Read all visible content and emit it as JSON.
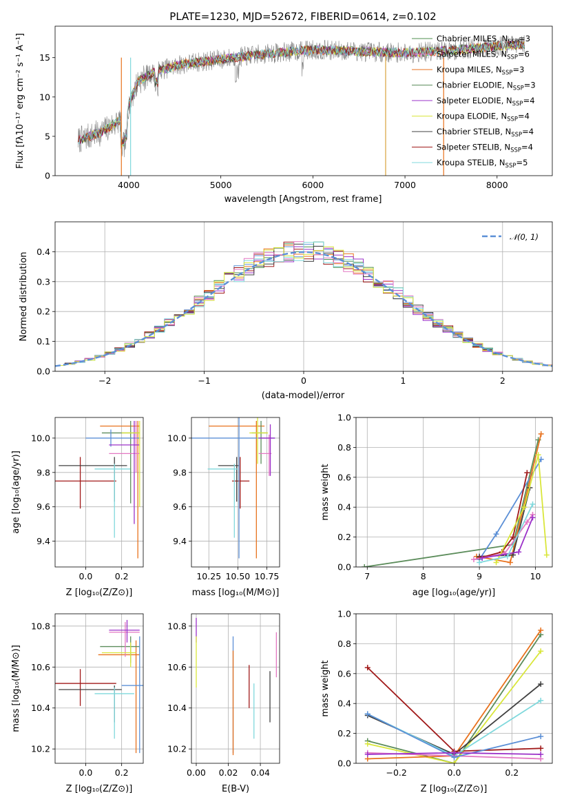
{
  "figure_title": "PLATE=1230, MJD=52672, FIBERID=0614, z=0.102",
  "chart_data": [
    {
      "id": "spectrum",
      "type": "line",
      "xlabel": "wavelength [Angstrom, rest frame]",
      "ylabel": "Flux [fλ10⁻¹⁷ erg cm⁻² s⁻¹ A⁻¹]",
      "xlim": [
        3200,
        8600
      ],
      "ylim": [
        0,
        19
      ],
      "xticks": [
        "4000",
        "5000",
        "6000",
        "7000",
        "8000"
      ],
      "yticks": [
        "0",
        "5",
        "10",
        "15"
      ],
      "grid": false,
      "legend": "right",
      "data_color": "#808080",
      "continuum_x": [
        3450,
        3700,
        3900,
        4000,
        4100,
        4300,
        4600,
        5000,
        5500,
        6000,
        6500,
        7000,
        7500,
        8000,
        8300
      ],
      "continuum_y": [
        4.5,
        5.5,
        7.0,
        9.0,
        12.0,
        13.3,
        14.2,
        14.8,
        15.5,
        16.0,
        15.8,
        15.6,
        15.9,
        16.5,
        16.6
      ],
      "series": [
        {
          "name": "Chabrier MILES, N_SSP=3",
          "color": "#4f8f4f"
        },
        {
          "name": "Salpeter MILES, N_SSP=6",
          "color": "#e377c2"
        },
        {
          "name": "Kroupa MILES, N_SSP=3",
          "color": "#e8711c"
        },
        {
          "name": "Chabrier ELODIE, N_SSP=3",
          "color": "#5b8c5a"
        },
        {
          "name": "Salpeter ELODIE, N_SSP=4",
          "color": "#9b30c8"
        },
        {
          "name": "Kroupa ELODIE, N_SSP=4",
          "color": "#d9e63a"
        },
        {
          "name": "Chabrier STELIB, N_SSP=4",
          "color": "#404040"
        },
        {
          "name": "Salpeter STELIB, N_SSP=4",
          "color": "#a01818"
        },
        {
          "name": "Kroupa STELIB, N_SSP=5",
          "color": "#7fd8dc"
        }
      ],
      "legend_labels": [
        {
          "pre": "Chabrier MILES, N",
          "sub": "SSP",
          "post": "=3"
        },
        {
          "pre": "Salpeter MILES, N",
          "sub": "SSP",
          "post": "=6"
        },
        {
          "pre": "Kroupa MILES, N",
          "sub": "SSP",
          "post": "=3"
        },
        {
          "pre": "Chabrier ELODIE, N",
          "sub": "SSP",
          "post": "=3"
        },
        {
          "pre": "Salpeter ELODIE, N",
          "sub": "SSP",
          "post": "=4"
        },
        {
          "pre": "Kroupa ELODIE, N",
          "sub": "SSP",
          "post": "=4"
        },
        {
          "pre": "Chabrier STELIB, N",
          "sub": "SSP",
          "post": "=4"
        },
        {
          "pre": "Salpeter STELIB, N",
          "sub": "SSP",
          "post": "=4"
        },
        {
          "pre": "Kroupa STELIB, N",
          "sub": "SSP",
          "post": "=5"
        }
      ]
    },
    {
      "id": "residuals",
      "type": "line",
      "xlabel": "(data-model)/error",
      "ylabel": "Normed distribution",
      "xlim": [
        -2.5,
        2.5
      ],
      "ylim": [
        0,
        0.5
      ],
      "xticks": [
        "−2",
        "−1",
        "0",
        "1",
        "2"
      ],
      "yticks": [
        "0.0",
        "0.1",
        "0.2",
        "0.3",
        "0.4"
      ],
      "grid": true,
      "legend": "top-right",
      "reference": {
        "name": "𝒩(0, 1)",
        "color": "#5b8fd6",
        "mu": 0,
        "sigma": 1
      },
      "hist_colors": [
        "#5b8fd6",
        "#e8711c",
        "#4f8f4f",
        "#a01818",
        "#9b30c8",
        "#404040",
        "#e377c2",
        "#7fd8dc",
        "#d9e63a"
      ]
    },
    {
      "id": "age_vs_Z",
      "type": "scatter",
      "xlabel": "Z [log₁₀(Z/Z⊙)]",
      "ylabel": "age  [log₁₀(age/yr)]",
      "xlim": [
        -0.17,
        0.32
      ],
      "ylim": [
        9.25,
        10.12
      ],
      "xticks": [
        "0.0",
        "0.2"
      ],
      "yticks": [
        "9.4",
        "9.6",
        "9.8",
        "10.0"
      ],
      "grid": true,
      "points": [
        {
          "x": -0.03,
          "y": 9.75,
          "xlo": -0.3,
          "xhi": 0.17,
          "ylo": 9.59,
          "yhi": 9.89,
          "color": "#a01818"
        },
        {
          "x": 0.16,
          "y": 9.84,
          "xlo": -0.15,
          "xhi": 0.23,
          "ylo": 9.63,
          "yhi": 9.89,
          "color": "#404040"
        },
        {
          "x": 0.16,
          "y": 9.82,
          "xlo": 0.05,
          "xhi": 0.25,
          "ylo": 9.42,
          "yhi": 9.85,
          "color": "#7fd8dc"
        },
        {
          "x": 0.29,
          "y": 10.07,
          "xlo": 0.08,
          "xhi": 0.3,
          "ylo": 9.3,
          "yhi": 10.1,
          "color": "#e8711c"
        },
        {
          "x": 0.25,
          "y": 10.03,
          "xlo": 0.09,
          "xhi": 0.3,
          "ylo": 9.62,
          "yhi": 10.1,
          "color": "#5b8c5a"
        },
        {
          "x": 0.14,
          "y": 10.0,
          "xlo": 0.0,
          "xhi": 0.3,
          "ylo": 9.95,
          "yhi": 10.05,
          "color": "#5b8fd6"
        },
        {
          "x": 0.28,
          "y": 9.91,
          "xlo": 0.13,
          "xhi": 0.3,
          "ylo": 9.8,
          "yhi": 10.1,
          "color": "#e377c2"
        },
        {
          "x": 0.27,
          "y": 9.96,
          "xlo": 0.13,
          "xhi": 0.3,
          "ylo": 9.5,
          "yhi": 10.1,
          "color": "#9b30c8"
        },
        {
          "x": 0.3,
          "y": 10.03,
          "xlo": 0.2,
          "xhi": 0.3,
          "ylo": 9.6,
          "yhi": 10.1,
          "color": "#d9e63a"
        }
      ]
    },
    {
      "id": "age_vs_mass",
      "type": "scatter",
      "xlabel": "mass [log₁₀(M/M⊙)]",
      "ylabel": "",
      "xlim": [
        10.1,
        10.86
      ],
      "ylim": [
        9.25,
        10.12
      ],
      "xticks": [
        "10.25",
        "10.50",
        "10.75"
      ],
      "yticks": [
        "9.4",
        "9.6",
        "9.8",
        "10.0"
      ],
      "grid": true,
      "points": [
        {
          "x": 10.52,
          "y": 9.75,
          "xlo": 10.45,
          "xhi": 10.6,
          "ylo": 9.59,
          "yhi": 9.89,
          "color": "#a01818"
        },
        {
          "x": 10.49,
          "y": 9.84,
          "xlo": 10.33,
          "xhi": 10.51,
          "ylo": 9.63,
          "yhi": 9.89,
          "color": "#404040"
        },
        {
          "x": 10.47,
          "y": 9.82,
          "xlo": 10.24,
          "xhi": 10.5,
          "ylo": 9.42,
          "yhi": 9.85,
          "color": "#7fd8dc"
        },
        {
          "x": 10.66,
          "y": 10.07,
          "xlo": 10.25,
          "xhi": 10.73,
          "ylo": 9.3,
          "yhi": 10.1,
          "color": "#e8711c"
        },
        {
          "x": 10.7,
          "y": 10.03,
          "xlo": 10.62,
          "xhi": 10.75,
          "ylo": 9.85,
          "yhi": 10.1,
          "color": "#5b8c5a"
        },
        {
          "x": 10.51,
          "y": 10.0,
          "xlo": 10.09,
          "xhi": 10.82,
          "ylo": 9.3,
          "yhi": 10.12,
          "color": "#5b8fd6"
        },
        {
          "x": 10.77,
          "y": 9.91,
          "xlo": 10.68,
          "xhi": 10.79,
          "ylo": 9.78,
          "yhi": 10.02,
          "color": "#e377c2"
        },
        {
          "x": 10.78,
          "y": 10.0,
          "xlo": 10.68,
          "xhi": 10.82,
          "ylo": 9.78,
          "yhi": 10.08,
          "color": "#9b30c8"
        },
        {
          "x": 10.67,
          "y": 10.03,
          "xlo": 10.6,
          "xhi": 10.76,
          "ylo": 9.85,
          "yhi": 10.12,
          "color": "#d9e63a"
        }
      ]
    },
    {
      "id": "weight_vs_age",
      "type": "line",
      "xlabel": "age  [log₁₀(age/yr)]",
      "ylabel": "mass weight",
      "xlim": [
        6.8,
        10.3
      ],
      "ylim": [
        0,
        1
      ],
      "xticks": [
        "7",
        "8",
        "9",
        "10"
      ],
      "yticks": [
        "0.0",
        "0.2",
        "0.4",
        "0.6",
        "0.8",
        "1.0"
      ],
      "grid": true,
      "series": [
        {
          "color": "#5b8c5a",
          "x": [
            6.95,
            9.6,
            10.05
          ],
          "y": [
            0.0,
            0.15,
            0.85
          ]
        },
        {
          "color": "#5b8fd6",
          "x": [
            9.0,
            9.3,
            10.1
          ],
          "y": [
            0.05,
            0.22,
            0.72
          ]
        },
        {
          "color": "#e8711c",
          "x": [
            8.95,
            9.55,
            10.1
          ],
          "y": [
            0.07,
            0.03,
            0.89
          ]
        },
        {
          "color": "#404040",
          "x": [
            9.0,
            9.6,
            9.9
          ],
          "y": [
            0.07,
            0.08,
            0.53
          ]
        },
        {
          "color": "#a01818",
          "x": [
            9.0,
            9.4,
            9.6,
            9.85
          ],
          "y": [
            0.06,
            0.1,
            0.2,
            0.63
          ]
        },
        {
          "color": "#e377c2",
          "x": [
            8.9,
            9.45,
            9.85,
            9.95
          ],
          "y": [
            0.05,
            0.09,
            0.3,
            0.35
          ]
        },
        {
          "color": "#d9e63a",
          "x": [
            9.3,
            9.8,
            10.05,
            10.2
          ],
          "y": [
            0.03,
            0.4,
            0.75,
            0.08
          ]
        },
        {
          "color": "#9b30c8",
          "x": [
            9.05,
            9.7,
            9.95
          ],
          "y": [
            0.06,
            0.1,
            0.33
          ]
        },
        {
          "color": "#7fd8dc",
          "x": [
            9.0,
            9.5,
            9.95
          ],
          "y": [
            0.03,
            0.07,
            0.42
          ]
        }
      ]
    },
    {
      "id": "mass_vs_Z",
      "type": "scatter",
      "xlabel": "Z [log₁₀(Z/Z⊙)]",
      "ylabel": "mass [log₁₀(M/M⊙)]",
      "xlim": [
        -0.17,
        0.32
      ],
      "ylim": [
        10.13,
        10.86
      ],
      "xticks": [
        "0.0",
        "0.2"
      ],
      "yticks": [
        "10.2",
        "10.4",
        "10.6",
        "10.8"
      ],
      "grid": true,
      "points": [
        {
          "x": -0.03,
          "y": 10.52,
          "xlo": -0.3,
          "xhi": 0.17,
          "ylo": 10.41,
          "yhi": 10.59,
          "color": "#a01818"
        },
        {
          "x": 0.16,
          "y": 10.49,
          "xlo": -0.15,
          "xhi": 0.2,
          "ylo": 10.33,
          "yhi": 10.51,
          "color": "#404040"
        },
        {
          "x": 0.16,
          "y": 10.47,
          "xlo": 0.05,
          "xhi": 0.27,
          "ylo": 10.25,
          "yhi": 10.5,
          "color": "#7fd8dc"
        },
        {
          "x": 0.28,
          "y": 10.66,
          "xlo": 0.07,
          "xhi": 0.3,
          "ylo": 10.18,
          "yhi": 10.73,
          "color": "#e8711c"
        },
        {
          "x": 0.25,
          "y": 10.7,
          "xlo": 0.08,
          "xhi": 0.3,
          "ylo": 10.62,
          "yhi": 10.75,
          "color": "#5b8c5a"
        },
        {
          "x": 0.3,
          "y": 10.51,
          "xlo": 0.2,
          "xhi": 0.32,
          "ylo": 10.18,
          "yhi": 10.75,
          "color": "#5b8fd6"
        },
        {
          "x": 0.22,
          "y": 10.77,
          "xlo": 0.13,
          "xhi": 0.3,
          "ylo": 10.65,
          "yhi": 10.82,
          "color": "#e377c2"
        },
        {
          "x": 0.23,
          "y": 10.78,
          "xlo": 0.13,
          "xhi": 0.3,
          "ylo": 10.72,
          "yhi": 10.83,
          "color": "#9b30c8"
        },
        {
          "x": 0.25,
          "y": 10.67,
          "xlo": 0.09,
          "xhi": 0.28,
          "ylo": 10.6,
          "yhi": 10.72,
          "color": "#d9e63a"
        }
      ]
    },
    {
      "id": "mass_vs_EBV",
      "type": "scatter",
      "xlabel": "E(B-V)",
      "ylabel": "",
      "xlim": [
        -0.003,
        0.052
      ],
      "ylim": [
        10.13,
        10.86
      ],
      "xticks": [
        "0.00",
        "0.02",
        "0.04"
      ],
      "yticks": [
        "10.2",
        "10.4",
        "10.6",
        "10.8"
      ],
      "grid": true,
      "points": [
        {
          "x": 0.0,
          "y": 10.78,
          "ylo": 10.72,
          "yhi": 10.84,
          "color": "#9b30c8"
        },
        {
          "x": 0.0,
          "y": 10.66,
          "ylo": 10.5,
          "yhi": 10.75,
          "color": "#d9e63a"
        },
        {
          "x": 0.023,
          "y": 10.51,
          "ylo": 10.18,
          "yhi": 10.75,
          "color": "#5b8fd6"
        },
        {
          "x": 0.023,
          "y": 10.45,
          "ylo": 10.17,
          "yhi": 10.68,
          "color": "#e8711c"
        },
        {
          "x": 0.033,
          "y": 10.5,
          "ylo": 10.4,
          "yhi": 10.61,
          "color": "#a01818"
        },
        {
          "x": 0.036,
          "y": 10.38,
          "ylo": 10.25,
          "yhi": 10.52,
          "color": "#7fd8dc"
        },
        {
          "x": 0.046,
          "y": 10.45,
          "ylo": 10.33,
          "yhi": 10.58,
          "color": "#404040"
        },
        {
          "x": 0.05,
          "y": 10.66,
          "ylo": 10.55,
          "yhi": 10.77,
          "color": "#e377c2"
        }
      ]
    },
    {
      "id": "weight_vs_Z",
      "type": "line",
      "xlabel": "Z [log₁₀(Z/Z⊙)]",
      "ylabel": "mass weight",
      "xlim": [
        -0.34,
        0.34
      ],
      "ylim": [
        0,
        1
      ],
      "xticks": [
        "−0.2",
        "0.0",
        "0.2"
      ],
      "yticks": [
        "0.0",
        "0.2",
        "0.4",
        "0.6",
        "0.8",
        "1.0"
      ],
      "grid": true,
      "series": [
        {
          "color": "#5b8c5a",
          "x": [
            -0.3,
            0.0,
            0.3
          ],
          "y": [
            0.15,
            0.0,
            0.86
          ]
        },
        {
          "color": "#d9e63a",
          "x": [
            -0.3,
            0.0,
            0.3
          ],
          "y": [
            0.13,
            0.0,
            0.75
          ]
        },
        {
          "color": "#e8711c",
          "x": [
            -0.3,
            0.0,
            0.3
          ],
          "y": [
            0.03,
            0.05,
            0.89
          ]
        },
        {
          "color": "#404040",
          "x": [
            -0.3,
            0.0,
            0.3
          ],
          "y": [
            0.32,
            0.06,
            0.53
          ]
        },
        {
          "color": "#a01818",
          "x": [
            -0.3,
            0.0,
            0.3
          ],
          "y": [
            0.64,
            0.08,
            0.1
          ]
        },
        {
          "color": "#7fd8dc",
          "x": [
            -0.3,
            0.0,
            0.3
          ],
          "y": [
            0.33,
            0.05,
            0.42
          ]
        },
        {
          "color": "#e377c2",
          "x": [
            -0.3,
            0.0,
            0.3
          ],
          "y": [
            0.07,
            0.05,
            0.03
          ]
        },
        {
          "color": "#5b8fd6",
          "x": [
            -0.3,
            0.0,
            0.3
          ],
          "y": [
            0.33,
            0.04,
            0.18
          ]
        },
        {
          "color": "#9b30c8",
          "x": [
            -0.3,
            0.0,
            0.3
          ],
          "y": [
            0.06,
            0.07,
            0.06
          ]
        }
      ]
    }
  ]
}
